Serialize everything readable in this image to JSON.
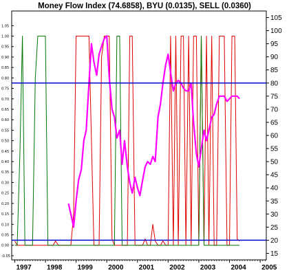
{
  "chart_data": {
    "type": "line",
    "title": "Money Flow Index (74.6858), BYU (0.0135), SELL (0.0360)",
    "x_ticks": [
      "1997",
      "1998",
      "1999",
      "2000",
      "2001",
      "2002",
      "2003",
      "2004",
      "2005"
    ],
    "x_range": [
      1996.9,
      2005.2
    ],
    "left_axis": {
      "ticks": [
        "-0.05",
        "0.00",
        "0.05",
        "0.10",
        "0.15",
        "0.20",
        "0.25",
        "0.30",
        "0.35",
        "0.40",
        "0.45",
        "0.50",
        "0.55",
        "0.60",
        "0.65",
        "0.70",
        "0.75",
        "0.80",
        "0.85",
        "0.90",
        "0.95",
        "1.00",
        "1.05"
      ],
      "range": [
        -0.07,
        1.12
      ]
    },
    "right_axis": {
      "ticks": [
        "15",
        "20",
        "25",
        "30",
        "35",
        "40",
        "45",
        "50",
        "55",
        "60",
        "65",
        "70",
        "75",
        "80",
        "85",
        "90",
        "95",
        "100",
        "105"
      ],
      "range": [
        12.5,
        107.5
      ]
    },
    "reference_lines": [
      {
        "axis": "right",
        "value": 80,
        "color": "#0000cc"
      },
      {
        "axis": "right",
        "value": 20,
        "color": "#0000cc"
      }
    ],
    "grid": false,
    "series": [
      {
        "name": "SELL",
        "color": "#dd0000",
        "axis": "left",
        "x": [
          1997.0,
          1997.08,
          1997.17,
          1997.25,
          1997.33,
          1997.42,
          1997.5,
          1997.58,
          1997.67,
          1997.75,
          1997.83,
          1997.92,
          1998.0,
          1998.08,
          1998.17,
          1998.25,
          1998.33,
          1998.42,
          1998.5,
          1998.58,
          1998.67,
          1998.75,
          1998.83,
          1998.92,
          1999.0,
          1999.08,
          1999.17,
          1999.25,
          1999.33,
          1999.42,
          1999.5,
          1999.58,
          1999.67,
          1999.75,
          1999.83,
          1999.92,
          2000.0,
          2000.08,
          2000.17,
          2000.25,
          2000.33,
          2000.42,
          2000.5,
          2000.58,
          2000.67,
          2000.75,
          2000.83,
          2000.92,
          2001.0,
          2001.08,
          2001.17,
          2001.25,
          2001.33,
          2001.42,
          2001.5,
          2001.58,
          2001.67,
          2001.75,
          2001.83,
          2001.92,
          2002.0,
          2002.08,
          2002.17,
          2002.25,
          2002.33,
          2002.42,
          2002.5,
          2002.58,
          2002.67,
          2002.75,
          2002.83,
          2002.92,
          2003.0,
          2003.08,
          2003.17,
          2003.25,
          2003.33,
          2003.42,
          2003.5,
          2003.58,
          2003.67,
          2003.75,
          2003.83,
          2003.92,
          2004.0,
          2004.08,
          2004.17,
          2004.25,
          2004.33
        ],
        "values": [
          0.02,
          0.0,
          0.0,
          0.0,
          0.0,
          0.0,
          0.0,
          0.0,
          0.0,
          0.0,
          0.0,
          0.0,
          0.0,
          0.0,
          0.0,
          0.0,
          0.02,
          0.0,
          0.0,
          0.0,
          0.0,
          0.0,
          0.0,
          0.15,
          1.0,
          1.0,
          1.0,
          1.0,
          1.0,
          1.0,
          0.5,
          0.0,
          0.0,
          0.0,
          0.9,
          1.0,
          1.0,
          1.0,
          0.03,
          0.0,
          0.0,
          0.0,
          0.0,
          0.0,
          0.0,
          1.0,
          1.0,
          0.0,
          0.0,
          0.0,
          0.0,
          0.03,
          0.0,
          0.0,
          0.1,
          0.02,
          0.0,
          0.0,
          0.02,
          0.0,
          0.0,
          1.0,
          0.0,
          1.0,
          0.0,
          1.0,
          1.0,
          0.0,
          1.0,
          0.0,
          1.0,
          1.0,
          0.0,
          1.0,
          0.0,
          1.0,
          0.0,
          1.0,
          0.0,
          0.0,
          1.0,
          1.0,
          1.0,
          0.0,
          0.0,
          1.0,
          1.0,
          0.03,
          0.02
        ]
      },
      {
        "name": "BYU",
        "color": "#007700",
        "axis": "left",
        "x": [
          1997.0,
          1997.08,
          1997.17,
          1997.25,
          1997.33,
          1997.42,
          1997.5,
          1997.58,
          1997.67,
          1997.75,
          1997.83,
          1997.92,
          1998.0,
          1998.08,
          1998.17,
          1998.25,
          1998.33,
          1998.42,
          1998.5,
          1998.58,
          1998.67,
          1998.75,
          1998.83,
          1998.92,
          1999.0,
          1999.08,
          1999.17,
          1999.25,
          1999.33,
          1999.42,
          1999.5,
          1999.58,
          1999.67,
          1999.75,
          1999.83,
          1999.92,
          2000.0,
          2000.08,
          2000.17,
          2000.25,
          2000.33,
          2000.42,
          2000.5,
          2000.58,
          2000.67,
          2000.75,
          2000.83,
          2000.92,
          2001.0,
          2001.08,
          2001.17,
          2001.25,
          2001.33,
          2001.42,
          2001.5,
          2001.58,
          2001.67,
          2001.75,
          2001.83,
          2001.92,
          2002.0,
          2002.08,
          2002.17,
          2002.25,
          2002.33,
          2002.42,
          2002.5,
          2002.58,
          2002.67,
          2002.75,
          2002.83,
          2002.92,
          2003.0,
          2003.08,
          2003.17,
          2003.25,
          2003.33,
          2003.42,
          2003.5,
          2003.58,
          2003.67,
          2003.75,
          2003.83,
          2003.92,
          2004.0,
          2004.08,
          2004.17,
          2004.25,
          2004.33
        ],
        "values": [
          0.0,
          0.0,
          0.45,
          1.0,
          0.0,
          0.0,
          0.0,
          0.0,
          0.8,
          1.0,
          1.0,
          1.0,
          1.0,
          0.0,
          0.0,
          0.0,
          0.0,
          0.0,
          0.0,
          0.0,
          0.0,
          0.0,
          0.0,
          0.0,
          0.0,
          0.0,
          0.0,
          0.0,
          0.0,
          0.0,
          0.0,
          0.0,
          0.0,
          0.0,
          0.0,
          0.0,
          0.0,
          0.0,
          0.0,
          0.0,
          1.0,
          1.0,
          0.0,
          0.0,
          0.0,
          0.0,
          0.0,
          0.0,
          0.0,
          0.0,
          0.0,
          0.0,
          0.0,
          0.0,
          0.0,
          0.0,
          0.0,
          0.0,
          0.0,
          0.0,
          0.0,
          0.0,
          0.0,
          0.0,
          0.0,
          0.0,
          0.0,
          0.0,
          0.0,
          0.0,
          0.0,
          0.0,
          0.0,
          1.0,
          0.0,
          0.0,
          0.0,
          0.0,
          0.0,
          0.0,
          0.0,
          0.0,
          0.0,
          0.0,
          0.0,
          0.0,
          0.0,
          0.0,
          0.0
        ]
      },
      {
        "name": "Money Flow Index",
        "color": "#ff00ff",
        "axis": "right",
        "x": [
          1998.75,
          1998.83,
          1998.92,
          1999.0,
          1999.08,
          1999.17,
          1999.25,
          1999.33,
          1999.42,
          1999.5,
          1999.58,
          1999.67,
          1999.75,
          1999.83,
          1999.92,
          2000.0,
          2000.08,
          2000.17,
          2000.25,
          2000.33,
          2000.42,
          2000.5,
          2000.58,
          2000.67,
          2000.75,
          2000.83,
          2000.92,
          2001.0,
          2001.08,
          2001.17,
          2001.25,
          2001.33,
          2001.42,
          2001.5,
          2001.58,
          2001.67,
          2001.75,
          2001.83,
          2001.92,
          2002.0,
          2002.08,
          2002.17,
          2002.25,
          2002.33,
          2002.42,
          2002.5,
          2002.58,
          2002.67,
          2002.75,
          2002.83,
          2002.92,
          2003.0,
          2003.08,
          2003.17,
          2003.25,
          2003.33,
          2003.42,
          2003.5,
          2003.58,
          2003.67,
          2003.75,
          2003.83,
          2003.92,
          2004.0,
          2004.08,
          2004.17,
          2004.25,
          2004.33
        ],
        "values": [
          34,
          30,
          25,
          35,
          43,
          47,
          58,
          62,
          80,
          95,
          88,
          83,
          91,
          94,
          97,
          98,
          82,
          70,
          67,
          59,
          62,
          49,
          58,
          48,
          42,
          38,
          44,
          40,
          37,
          43,
          48,
          50,
          49,
          52,
          50,
          67,
          72,
          80,
          87,
          91,
          84,
          77,
          80,
          81,
          80,
          78,
          77,
          77,
          80,
          65,
          53,
          48,
          55,
          62,
          58,
          62,
          67,
          68,
          72,
          75,
          75,
          75,
          73,
          74,
          75,
          75,
          75,
          74
        ]
      }
    ]
  }
}
